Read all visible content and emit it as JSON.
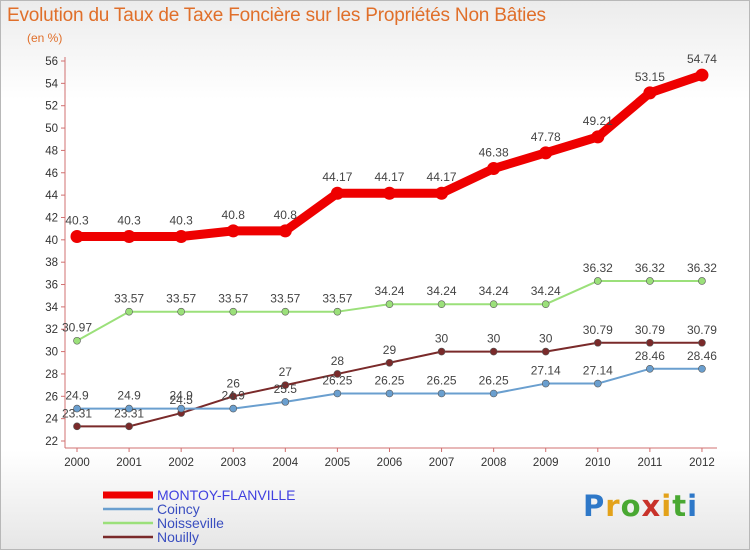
{
  "title": "Evolution du Taux de Taxe Foncière sur les Propriétés Non Bâties",
  "subtitle": "(en %)",
  "logo_text": "Proxiti",
  "chart_data": {
    "type": "line",
    "x": [
      "2000",
      "2001",
      "2002",
      "2003",
      "2004",
      "2005",
      "2006",
      "2007",
      "2008",
      "2009",
      "2010",
      "2011",
      "2012"
    ],
    "ylim": [
      22,
      56
    ],
    "yticks": [
      22,
      24,
      26,
      28,
      30,
      32,
      34,
      36,
      38,
      40,
      42,
      44,
      46,
      48,
      50,
      52,
      54,
      56
    ],
    "grid": false,
    "legend": "bottom-left",
    "series": [
      {
        "name": "MONTOY-FLANVILLE",
        "color": "#ee0000",
        "values": [
          40.3,
          40.3,
          40.3,
          40.8,
          40.8,
          44.17,
          44.17,
          44.17,
          46.38,
          47.78,
          49.21,
          53.15,
          54.74
        ],
        "labels": [
          "40.3",
          "40.3",
          "40.3",
          "40.8",
          "40.8",
          "44.17",
          "44.17",
          "44.17",
          "46.38",
          "47.78",
          "49.21",
          "53.15",
          "54.74"
        ]
      },
      {
        "name": "Coincy",
        "color": "#6a9fcf",
        "values": [
          24.9,
          24.9,
          24.9,
          24.9,
          25.5,
          26.25,
          26.25,
          26.25,
          26.25,
          27.14,
          27.14,
          28.46,
          28.46
        ],
        "labels": [
          "24.9",
          "24.9",
          "24.9",
          "24.9",
          "25.5",
          "26.25",
          "26.25",
          "26.25",
          "26.25",
          "27.14",
          "27.14",
          "28.46",
          "28.46"
        ]
      },
      {
        "name": "Noisseville",
        "color": "#9be07a",
        "values": [
          30.97,
          33.57,
          33.57,
          33.57,
          33.57,
          33.57,
          34.24,
          34.24,
          34.24,
          34.24,
          36.32,
          36.32,
          36.32
        ],
        "labels": [
          "30.97",
          "33.57",
          "33.57",
          "33.57",
          "33.57",
          "33.57",
          "34.24",
          "34.24",
          "34.24",
          "34.24",
          "36.32",
          "36.32",
          "36.32"
        ]
      },
      {
        "name": "Nouilly",
        "color": "#7a2a2a",
        "values": [
          23.31,
          23.31,
          24.5,
          26,
          27,
          28,
          29,
          30,
          30,
          30,
          30.79,
          30.79,
          30.79
        ],
        "labels": [
          "23.31",
          "23.31",
          "24.5",
          "26",
          "27",
          "28",
          "29",
          "30",
          "30",
          "30",
          "30.79",
          "30.79",
          "30.79"
        ]
      }
    ]
  }
}
